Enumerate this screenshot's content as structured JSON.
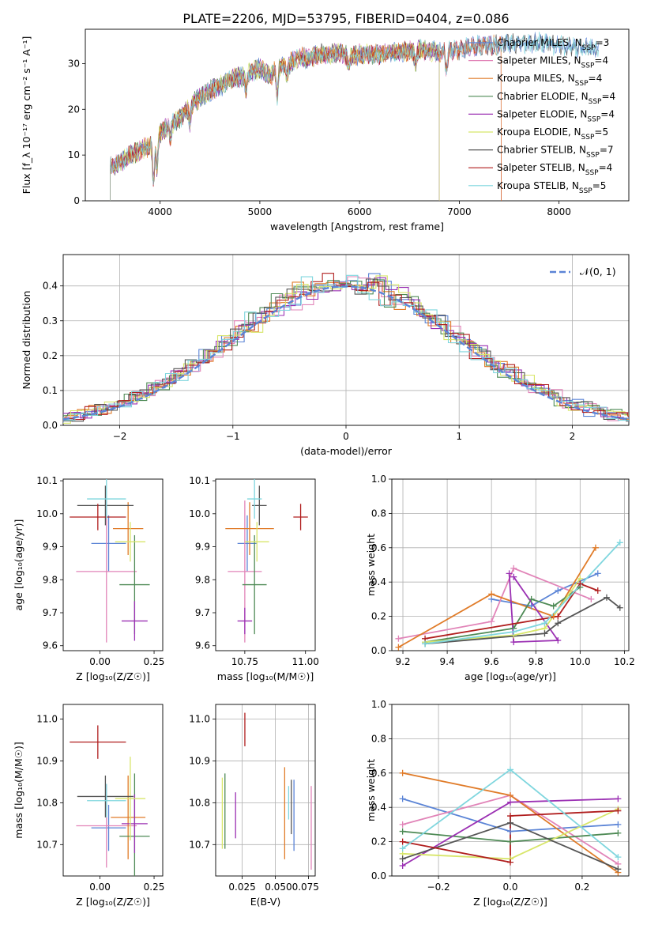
{
  "figure_title": "PLATE=2206, MJD=53795, FIBERID=0404, z=0.086",
  "colors": {
    "Chabrier MILES": "#5b84d6",
    "Salpeter MILES": "#e184b8",
    "Kroupa MILES": "#e07b28",
    "Chabrier ELODIE": "#4e8a55",
    "Salpeter ELODIE": "#9b30b3",
    "Kroupa ELODIE": "#d8e66a",
    "Chabrier STELIB": "#555555",
    "Salpeter STELIB": "#b01e1e",
    "Kroupa STELIB": "#7fd6de",
    "gaussian": "#5b84d6"
  },
  "chart_data": [
    {
      "id": "spectrum",
      "type": "line",
      "title": "PLATE=2206, MJD=53795, FIBERID=0404, z=0.086",
      "xlabel": "wavelength [Angstrom, rest frame]",
      "ylabel": "Flux [f_λ 10⁻¹⁷ erg cm⁻² s⁻¹ A⁻¹]",
      "xlim": [
        3250,
        8700
      ],
      "ylim": [
        0,
        37.5
      ],
      "xticks": [
        4000,
        5000,
        6000,
        7000,
        8000
      ],
      "yticks": [
        0,
        10,
        20,
        30
      ],
      "continuum": {
        "x": [
          3500,
          3600,
          3700,
          3800,
          3900,
          4000,
          4100,
          4200,
          4300,
          4400,
          4500,
          4600,
          4700,
          4800,
          4900,
          5000,
          5100,
          5200,
          5300,
          5400,
          5500,
          5600,
          5700,
          5800,
          5900,
          6000,
          6200,
          6400,
          6600,
          6800,
          7000,
          7200,
          7400,
          7600,
          7800,
          8000,
          8200,
          8400
        ],
        "y": [
          7.5,
          8.5,
          10,
          11,
          12,
          15,
          16.5,
          18,
          21,
          22.5,
          24,
          25,
          26.5,
          27,
          28,
          29,
          27,
          29.5,
          30,
          31.5,
          31,
          32,
          32,
          32.5,
          31.5,
          32,
          32,
          32.5,
          33,
          32.5,
          33,
          34,
          34,
          34.5,
          34.5,
          34,
          33.5,
          33
        ]
      },
      "series": [
        {
          "name": "Chabrier MILES",
          "n_ssp": "3",
          "legend_label": "Chabrier MILES, N",
          "end": 8400
        },
        {
          "name": "Salpeter MILES",
          "n_ssp": "4",
          "legend_label": "Salpeter MILES, N",
          "end": 7420
        },
        {
          "name": "Kroupa MILES",
          "n_ssp": "4",
          "legend_label": "Kroupa MILES, N",
          "end": 7420
        },
        {
          "name": "Chabrier ELODIE",
          "n_ssp": "4",
          "legend_label": "Chabrier ELODIE, N",
          "end": 6800
        },
        {
          "name": "Salpeter ELODIE",
          "n_ssp": "4",
          "legend_label": "Salpeter ELODIE, N",
          "end": 6800
        },
        {
          "name": "Kroupa ELODIE",
          "n_ssp": "5",
          "legend_label": "Kroupa ELODIE, N",
          "end": 6800
        },
        {
          "name": "Chabrier STELIB",
          "n_ssp": "7",
          "legend_label": "Chabrier STELIB, N",
          "end": 8400
        },
        {
          "name": "Salpeter STELIB",
          "n_ssp": "4",
          "legend_label": "Salpeter STELIB, N",
          "end": 7420
        },
        {
          "name": "Kroupa STELIB",
          "n_ssp": "5",
          "legend_label": "Kroupa STELIB, N",
          "end": 8400
        }
      ],
      "legend_sub": "SSP",
      "legend_loc": "right"
    },
    {
      "id": "residuals",
      "type": "line",
      "xlabel": "(data-model)/error",
      "ylabel": "Normed distribution",
      "xlim": [
        -2.5,
        2.5
      ],
      "ylim": [
        0,
        0.49
      ],
      "xticks": [
        -2,
        -1,
        0,
        1,
        2
      ],
      "yticks": [
        0.0,
        0.1,
        0.2,
        0.3,
        0.4
      ],
      "grid": true,
      "bin_width": 0.1,
      "gaussian_label": "𝒩(0, 1)",
      "legend_loc": "top-right"
    },
    {
      "id": "age_vs_Z",
      "type": "scatter",
      "xlabel": "Z [log₁₀(Z/Z☉)]",
      "ylabel": "age  [log₁₀(age/yr)]",
      "xlim": [
        -0.17,
        0.29
      ],
      "ylim": [
        9.585,
        10.105
      ],
      "xticks": [
        0.0,
        0.25
      ],
      "yticks": [
        9.6,
        9.7,
        9.8,
        9.9,
        10.0,
        10.1
      ],
      "points": [
        {
          "x": 0.04,
          "xerr": 0.08,
          "y": 9.91,
          "yerr": 0.085,
          "s": "Chabrier MILES"
        },
        {
          "x": 0.03,
          "xerr": 0.14,
          "y": 9.825,
          "yerr": 0.215,
          "s": "Salpeter MILES"
        },
        {
          "x": 0.13,
          "xerr": 0.07,
          "y": 9.955,
          "yerr": 0.08,
          "s": "Kroupa MILES"
        },
        {
          "x": 0.16,
          "xerr": 0.07,
          "y": 9.785,
          "yerr": 0.15,
          "s": "Chabrier ELODIE"
        },
        {
          "x": 0.16,
          "xerr": 0.06,
          "y": 9.675,
          "yerr": 0.06,
          "s": "Salpeter ELODIE"
        },
        {
          "x": 0.14,
          "xerr": 0.07,
          "y": 9.915,
          "yerr": 0.06,
          "s": "Kroupa ELODIE"
        },
        {
          "x": 0.025,
          "xerr": 0.13,
          "y": 10.025,
          "yerr": 0.06,
          "s": "Chabrier STELIB"
        },
        {
          "x": -0.01,
          "xerr": 0.13,
          "y": 9.99,
          "yerr": 0.04,
          "s": "Salpeter STELIB"
        },
        {
          "x": 0.03,
          "xerr": 0.09,
          "y": 10.045,
          "yerr": 0.06,
          "s": "Kroupa STELIB"
        }
      ]
    },
    {
      "id": "age_vs_mass",
      "type": "scatter",
      "xlabel": "mass [log₁₀(M/M☉)]",
      "ylabel": "",
      "xlim": [
        10.63,
        11.04
      ],
      "ylim": [
        9.585,
        10.105
      ],
      "xticks": [
        10.75,
        11.0
      ],
      "yticks": [
        9.6,
        9.7,
        9.8,
        9.9,
        10.0,
        10.1
      ],
      "points": [
        {
          "x": 10.76,
          "xerr": 0.04,
          "y": 9.91,
          "yerr": 0.085,
          "s": "Chabrier MILES"
        },
        {
          "x": 10.75,
          "xerr": 0.07,
          "y": 9.825,
          "yerr": 0.215,
          "s": "Salpeter MILES"
        },
        {
          "x": 10.77,
          "xerr": 0.1,
          "y": 9.955,
          "yerr": 0.08,
          "s": "Kroupa MILES"
        },
        {
          "x": 10.79,
          "xerr": 0.05,
          "y": 9.785,
          "yerr": 0.15,
          "s": "Chabrier ELODIE"
        },
        {
          "x": 10.75,
          "xerr": 0.03,
          "y": 9.675,
          "yerr": 0.04,
          "s": "Salpeter ELODIE"
        },
        {
          "x": 10.8,
          "xerr": 0.05,
          "y": 9.915,
          "yerr": 0.06,
          "s": "Kroupa ELODIE"
        },
        {
          "x": 10.81,
          "xerr": 0.03,
          "y": 10.025,
          "yerr": 0.06,
          "s": "Chabrier STELIB"
        },
        {
          "x": 10.98,
          "xerr": 0.03,
          "y": 9.99,
          "yerr": 0.04,
          "s": "Salpeter STELIB"
        },
        {
          "x": 10.79,
          "xerr": 0.03,
          "y": 10.045,
          "yerr": 0.06,
          "s": "Kroupa STELIB"
        }
      ]
    },
    {
      "id": "weight_vs_age",
      "type": "line",
      "xlabel": "age  [log₁₀(age/yr)]",
      "ylabel": "mass weight",
      "xlim": [
        9.15,
        10.22
      ],
      "ylim": [
        0,
        1.0
      ],
      "xticks": [
        9.2,
        9.4,
        9.6,
        9.8,
        10.0,
        10.2
      ],
      "yticks": [
        0.0,
        0.2,
        0.4,
        0.6,
        0.8,
        1.0
      ],
      "grid": true,
      "series": [
        {
          "name": "Chabrier MILES",
          "x": [
            9.6,
            9.78,
            9.9,
            10.08
          ],
          "y": [
            0.3,
            0.26,
            0.35,
            0.45
          ]
        },
        {
          "name": "Salpeter MILES",
          "x": [
            9.18,
            9.6,
            9.7,
            10.05
          ],
          "y": [
            0.07,
            0.17,
            0.48,
            0.3
          ]
        },
        {
          "name": "Kroupa MILES",
          "x": [
            9.18,
            9.6,
            9.88,
            10.07
          ],
          "y": [
            0.02,
            0.33,
            0.2,
            0.6
          ]
        },
        {
          "name": "Chabrier ELODIE",
          "x": [
            9.3,
            9.7,
            9.78,
            9.88,
            10.0
          ],
          "y": [
            0.05,
            0.13,
            0.3,
            0.26,
            0.37
          ]
        },
        {
          "name": "Salpeter ELODIE",
          "x": [
            9.68,
            9.7,
            9.9,
            9.7
          ],
          "y": [
            0.45,
            0.05,
            0.06,
            0.43
          ]
        },
        {
          "name": "Kroupa ELODIE",
          "x": [
            9.3,
            9.7,
            9.84,
            10.0
          ],
          "y": [
            0.05,
            0.09,
            0.13,
            0.42
          ]
        },
        {
          "name": "Chabrier STELIB",
          "x": [
            9.3,
            9.84,
            9.9,
            10.12,
            10.18
          ],
          "y": [
            0.04,
            0.1,
            0.16,
            0.31,
            0.25
          ]
        },
        {
          "name": "Salpeter STELIB",
          "x": [
            9.3,
            9.9,
            10.0,
            10.08
          ],
          "y": [
            0.07,
            0.2,
            0.39,
            0.35
          ]
        },
        {
          "name": "Kroupa STELIB",
          "x": [
            9.3,
            9.7,
            9.84,
            10.18
          ],
          "y": [
            0.04,
            0.11,
            0.16,
            0.63
          ]
        }
      ]
    },
    {
      "id": "mass_vs_Z",
      "type": "scatter",
      "xlabel": "Z [log₁₀(Z/Z☉)]",
      "ylabel": "mass [log₁₀(M/M☉)]",
      "xlim": [
        -0.17,
        0.29
      ],
      "ylim": [
        10.625,
        11.035
      ],
      "xticks": [
        0.0,
        0.25
      ],
      "yticks": [
        10.7,
        10.8,
        10.9,
        11.0
      ],
      "points": [
        {
          "x": 0.04,
          "xerr": 0.08,
          "y": 10.74,
          "yerr": 0.055,
          "s": "Chabrier MILES"
        },
        {
          "x": 0.03,
          "xerr": 0.14,
          "y": 10.745,
          "yerr": 0.1,
          "s": "Salpeter MILES"
        },
        {
          "x": 0.13,
          "xerr": 0.08,
          "y": 10.765,
          "yerr": 0.1,
          "s": "Kroupa MILES"
        },
        {
          "x": 0.16,
          "xerr": 0.07,
          "y": 10.72,
          "yerr": 0.15,
          "s": "Chabrier ELODIE"
        },
        {
          "x": 0.16,
          "xerr": 0.06,
          "y": 10.75,
          "yerr": 0.07,
          "s": "Salpeter ELODIE"
        },
        {
          "x": 0.14,
          "xerr": 0.07,
          "y": 10.81,
          "yerr": 0.1,
          "s": "Kroupa ELODIE"
        },
        {
          "x": 0.025,
          "xerr": 0.13,
          "y": 10.815,
          "yerr": 0.05,
          "s": "Chabrier STELIB"
        },
        {
          "x": -0.01,
          "xerr": 0.13,
          "y": 10.945,
          "yerr": 0.04,
          "s": "Salpeter STELIB"
        },
        {
          "x": 0.03,
          "xerr": 0.09,
          "y": 10.805,
          "yerr": 0.04,
          "s": "Kroupa STELIB"
        }
      ]
    },
    {
      "id": "mass_vs_ebv",
      "type": "scatter",
      "xlabel": "E(B-V)",
      "ylabel": "",
      "xlim": [
        0.005,
        0.08
      ],
      "ylim": [
        10.625,
        11.035
      ],
      "xticks": [
        0.025,
        0.05,
        0.075
      ],
      "tick_labels": [
        "0.025",
        "0.0500.075"
      ],
      "yticks": [
        10.7,
        10.8,
        10.9,
        11.0
      ],
      "grid": true,
      "points": [
        {
          "x": 0.064,
          "y": 10.77,
          "yerr": 0.085,
          "s": "Chabrier MILES"
        },
        {
          "x": 0.077,
          "y": 10.74,
          "yerr": 0.1,
          "s": "Salpeter MILES"
        },
        {
          "x": 0.057,
          "y": 10.775,
          "yerr": 0.11,
          "s": "Kroupa MILES"
        },
        {
          "x": 0.012,
          "y": 10.78,
          "yerr": 0.09,
          "s": "Chabrier ELODIE"
        },
        {
          "x": 0.02,
          "y": 10.77,
          "yerr": 0.055,
          "s": "Salpeter ELODIE"
        },
        {
          "x": 0.01,
          "y": 10.775,
          "yerr": 0.085,
          "s": "Kroupa ELODIE"
        },
        {
          "x": 0.062,
          "y": 10.79,
          "yerr": 0.065,
          "s": "Chabrier STELIB"
        },
        {
          "x": 0.027,
          "y": 10.975,
          "yerr": 0.04,
          "s": "Salpeter STELIB"
        },
        {
          "x": 0.06,
          "y": 10.8,
          "yerr": 0.04,
          "s": "Kroupa STELIB"
        }
      ]
    },
    {
      "id": "weight_vs_Z",
      "type": "line",
      "xlabel": "Z [log₁₀(Z/Z☉)]",
      "ylabel": "mass weight",
      "xlim": [
        -0.33,
        0.33
      ],
      "ylim": [
        0,
        1.0
      ],
      "xticks": [
        -0.2,
        0.0,
        0.2
      ],
      "yticks": [
        0.0,
        0.2,
        0.4,
        0.6,
        0.8,
        1.0
      ],
      "grid": true,
      "series": [
        {
          "name": "Chabrier MILES",
          "x": [
            -0.3,
            0.0,
            0.3
          ],
          "y": [
            0.45,
            0.26,
            0.3
          ]
        },
        {
          "name": "Salpeter MILES",
          "x": [
            -0.3,
            0.0,
            0.3
          ],
          "y": [
            0.3,
            0.47,
            0.07
          ]
        },
        {
          "name": "Kroupa MILES",
          "x": [
            -0.3,
            0.0,
            0.3
          ],
          "y": [
            0.6,
            0.47,
            0.02
          ]
        },
        {
          "name": "Chabrier ELODIE",
          "x": [
            -0.3,
            0.0,
            0.3
          ],
          "y": [
            0.26,
            0.2,
            0.25
          ]
        },
        {
          "name": "Salpeter ELODIE",
          "x": [
            -0.3,
            0.0,
            0.3
          ],
          "y": [
            0.06,
            0.43,
            0.45
          ]
        },
        {
          "name": "Kroupa ELODIE",
          "x": [
            -0.3,
            0.0,
            0.3
          ],
          "y": [
            0.13,
            0.1,
            0.39
          ]
        },
        {
          "name": "Chabrier STELIB",
          "x": [
            -0.3,
            0.0,
            0.3
          ],
          "y": [
            0.1,
            0.31,
            0.04
          ]
        },
        {
          "name": "Salpeter STELIB",
          "x": [
            -0.3,
            0.0,
            0.0,
            0.3
          ],
          "y": [
            0.2,
            0.08,
            0.35,
            0.38
          ]
        },
        {
          "name": "Kroupa STELIB",
          "x": [
            -0.3,
            0.0,
            0.3
          ],
          "y": [
            0.16,
            0.62,
            0.11
          ]
        }
      ]
    }
  ]
}
